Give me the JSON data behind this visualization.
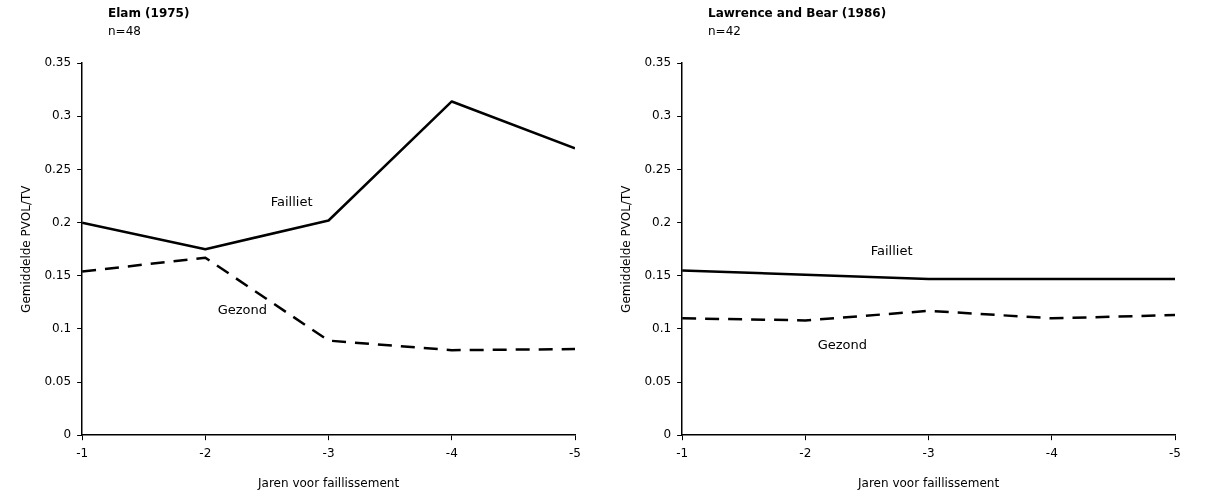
{
  "chart_data": [
    {
      "type": "line",
      "title": "Elam (1975)",
      "subtitle": "n=48",
      "xlabel": "Jaren voor faillissement",
      "ylabel": "Gemiddelde PVOL/TV",
      "x": [
        -1,
        -2,
        -3,
        -4,
        -5
      ],
      "xlim": [
        -1,
        -5
      ],
      "xticks": [
        -1,
        -2,
        -3,
        -4,
        -5
      ],
      "ylim": [
        0,
        0.35
      ],
      "yticks": [
        0,
        0.05,
        0.1,
        0.15,
        0.2,
        0.25,
        0.3,
        0.35
      ],
      "series": [
        {
          "name": "Failliet",
          "color": "#000000",
          "line_style": "solid",
          "values": [
            0.2,
            0.175,
            0.202,
            0.314,
            0.27
          ]
        },
        {
          "name": "Gezond",
          "color": "#000000",
          "line_style": "dashed",
          "values": [
            0.154,
            0.167,
            0.089,
            0.08,
            0.081
          ]
        }
      ],
      "legend": false,
      "grid": false,
      "marker": "none"
    },
    {
      "type": "line",
      "title": "Lawrence and Bear (1986)",
      "subtitle": "n=42",
      "xlabel": "Jaren voor faillissement",
      "ylabel": "Gemiddelde PVOL/TV",
      "x": [
        -1,
        -2,
        -3,
        -4,
        -5
      ],
      "xlim": [
        -1,
        -5
      ],
      "xticks": [
        -1,
        -2,
        -3,
        -4,
        -5
      ],
      "ylim": [
        0,
        0.35
      ],
      "yticks": [
        0,
        0.05,
        0.1,
        0.15,
        0.2,
        0.25,
        0.3,
        0.35
      ],
      "series": [
        {
          "name": "Failliet",
          "color": "#000000",
          "line_style": "solid",
          "values": [
            0.155,
            0.151,
            0.147,
            0.147,
            0.147
          ]
        },
        {
          "name": "Gezond",
          "color": "#000000",
          "line_style": "dashed",
          "values": [
            0.11,
            0.108,
            0.117,
            0.11,
            0.113
          ]
        }
      ],
      "legend": false,
      "grid": false,
      "marker": "none"
    }
  ]
}
